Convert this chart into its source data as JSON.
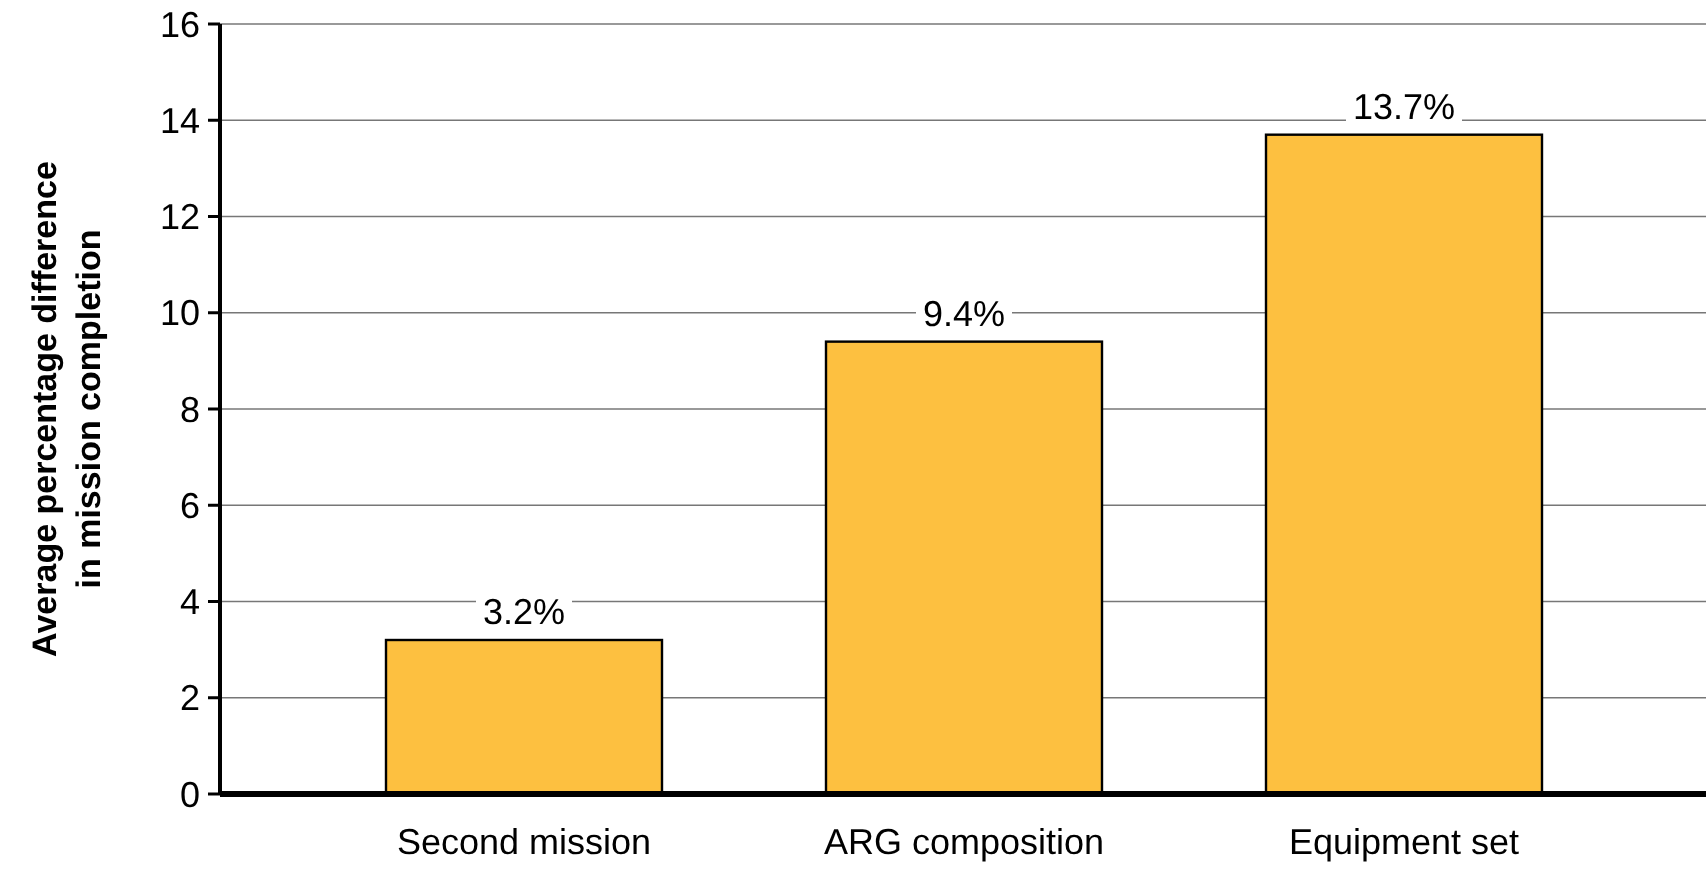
{
  "chart_data": {
    "type": "bar",
    "ylabel": "Average percentage difference in mission completion",
    "categories": [
      "Second mission",
      "ARG composition",
      "Equipment set"
    ],
    "values": [
      3.2,
      9.4,
      13.7
    ],
    "value_labels": [
      "3.2%",
      "9.4%",
      "13.7%"
    ],
    "color": "#fdc040",
    "ylim": [
      0,
      16
    ],
    "yticks": [
      0,
      2,
      4,
      6,
      8,
      10,
      12,
      14,
      16
    ],
    "grid": "y"
  }
}
